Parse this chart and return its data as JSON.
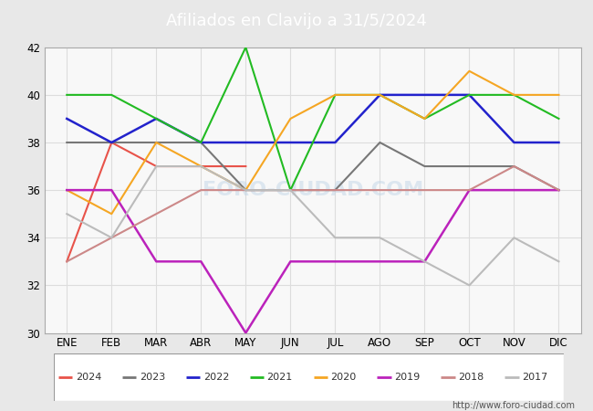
{
  "title": "Afiliados en Clavijo a 31/5/2024",
  "months": [
    "ENE",
    "FEB",
    "MAR",
    "ABR",
    "MAY",
    "JUN",
    "JUL",
    "AGO",
    "SEP",
    "OCT",
    "NOV",
    "DIC"
  ],
  "ylim": [
    30,
    42
  ],
  "yticks": [
    30,
    32,
    34,
    36,
    38,
    40,
    42
  ],
  "series": {
    "2024": {
      "data": [
        33,
        38,
        37,
        37,
        37,
        null,
        null,
        null,
        null,
        null,
        null,
        null
      ],
      "color": "#e8534a",
      "linewidth": 1.5
    },
    "2023": {
      "data": [
        38,
        38,
        38,
        38,
        36,
        36,
        36,
        38,
        37,
        37,
        37,
        36
      ],
      "color": "#777777",
      "linewidth": 1.5
    },
    "2022": {
      "data": [
        39,
        38,
        39,
        38,
        38,
        38,
        38,
        40,
        40,
        40,
        38,
        38
      ],
      "color": "#2222cc",
      "linewidth": 1.8
    },
    "2021": {
      "data": [
        40,
        40,
        39,
        38,
        42,
        36,
        40,
        40,
        39,
        40,
        40,
        39
      ],
      "color": "#22bb22",
      "linewidth": 1.5
    },
    "2020": {
      "data": [
        36,
        35,
        38,
        37,
        36,
        39,
        40,
        40,
        39,
        41,
        40,
        40
      ],
      "color": "#f5a623",
      "linewidth": 1.5
    },
    "2019": {
      "data": [
        36,
        36,
        33,
        33,
        30,
        33,
        33,
        33,
        33,
        36,
        36,
        36
      ],
      "color": "#bb22bb",
      "linewidth": 1.8
    },
    "2018": {
      "data": [
        33,
        34,
        35,
        36,
        36,
        36,
        36,
        36,
        36,
        36,
        37,
        36
      ],
      "color": "#cc8888",
      "linewidth": 1.5
    },
    "2017": {
      "data": [
        35,
        34,
        37,
        37,
        36,
        36,
        34,
        34,
        33,
        32,
        34,
        33
      ],
      "color": "#bbbbbb",
      "linewidth": 1.5
    }
  },
  "legend_order": [
    "2024",
    "2023",
    "2022",
    "2021",
    "2020",
    "2019",
    "2018",
    "2017"
  ],
  "grid_color": "#dddddd",
  "header_bg": "#5aa0d0",
  "plot_bg": "#f8f8f8",
  "outer_bg": "#e8e8e8",
  "footer_text": "http://www.foro-ciudad.com",
  "watermark": "FORO-CIUDAD.COM"
}
